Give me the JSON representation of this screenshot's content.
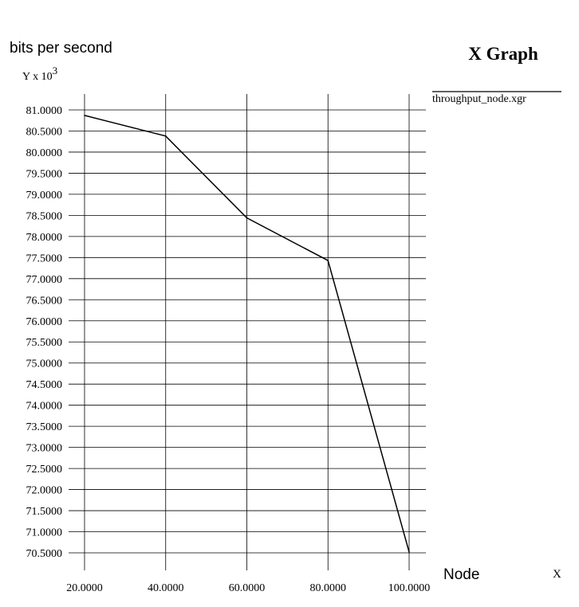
{
  "chart_data": {
    "type": "line",
    "title": "X Graph",
    "ylabel": "bits per second",
    "y_multiplier_label": "Y x 10",
    "y_multiplier_exponent": "3",
    "xlabel": "Node",
    "x_axis_letter": "X",
    "xlim": [
      20,
      100
    ],
    "ylim": [
      70.5,
      81.0
    ],
    "x_ticks": [
      "20.0000",
      "40.0000",
      "60.0000",
      "80.0000",
      "100.0000"
    ],
    "y_ticks": [
      "81.0000",
      "80.5000",
      "80.0000",
      "79.5000",
      "79.0000",
      "78.5000",
      "78.0000",
      "77.5000",
      "77.0000",
      "76.5000",
      "76.0000",
      "75.5000",
      "75.0000",
      "74.5000",
      "74.0000",
      "73.5000",
      "73.0000",
      "72.5000",
      "72.0000",
      "71.5000",
      "71.0000",
      "70.5000"
    ],
    "grid": true,
    "legend_position": "top-right",
    "colors": {
      "line": "#000000",
      "grid": "#000000",
      "background": "#ffffff"
    },
    "series": [
      {
        "name": "throughput_node.xgr",
        "x": [
          20,
          40,
          60,
          80,
          100
        ],
        "y": [
          80.87,
          80.38,
          78.44,
          77.43,
          70.52
        ]
      }
    ]
  }
}
